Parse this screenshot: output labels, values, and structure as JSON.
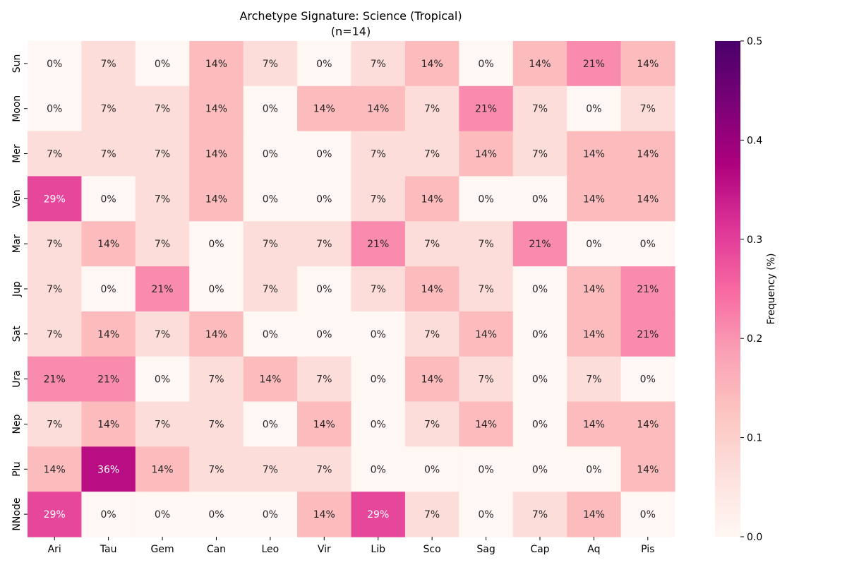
{
  "chart_data": {
    "type": "heatmap",
    "title": "Archetype Signature: Science (Tropical)",
    "subtitle": "(n=14)",
    "x_categories": [
      "Ari",
      "Tau",
      "Gem",
      "Can",
      "Leo",
      "Vir",
      "Lib",
      "Sco",
      "Sag",
      "Cap",
      "Aq",
      "Pis"
    ],
    "y_categories": [
      "Sun",
      "Moon",
      "Mer",
      "Ven",
      "Mar",
      "Jup",
      "Sat",
      "Ura",
      "Nep",
      "Plu",
      "NNode"
    ],
    "values": [
      [
        0,
        7,
        0,
        14,
        7,
        0,
        7,
        14,
        0,
        14,
        21,
        14
      ],
      [
        0,
        7,
        7,
        14,
        0,
        14,
        14,
        7,
        21,
        7,
        0,
        7
      ],
      [
        7,
        7,
        7,
        14,
        0,
        0,
        7,
        7,
        14,
        7,
        14,
        14
      ],
      [
        29,
        0,
        7,
        14,
        0,
        0,
        7,
        14,
        0,
        0,
        14,
        14
      ],
      [
        7,
        14,
        7,
        0,
        7,
        7,
        21,
        7,
        7,
        21,
        0,
        0
      ],
      [
        7,
        0,
        21,
        0,
        7,
        0,
        7,
        14,
        7,
        0,
        14,
        21
      ],
      [
        7,
        14,
        7,
        14,
        0,
        0,
        0,
        7,
        14,
        0,
        14,
        21
      ],
      [
        21,
        21,
        0,
        7,
        14,
        7,
        0,
        14,
        7,
        0,
        7,
        0
      ],
      [
        7,
        14,
        7,
        7,
        0,
        14,
        0,
        7,
        14,
        0,
        14,
        14
      ],
      [
        14,
        36,
        14,
        7,
        7,
        7,
        0,
        0,
        0,
        0,
        0,
        14
      ],
      [
        29,
        0,
        0,
        0,
        0,
        14,
        29,
        7,
        0,
        7,
        14,
        0
      ]
    ],
    "value_suffix": "%",
    "colorbar": {
      "label": "Frequency (%)",
      "range": [
        0,
        0.5
      ],
      "ticks": [
        "0.0",
        "0.1",
        "0.2",
        "0.3",
        "0.4",
        "0.5"
      ],
      "colormap": "RdPu",
      "stops": [
        "#fff7f3",
        "#fde0dd",
        "#fcc5c0",
        "#fa9fb5",
        "#f768a1",
        "#dd3497",
        "#ae017e",
        "#7a0177",
        "#49006a"
      ]
    },
    "legend": "right"
  }
}
